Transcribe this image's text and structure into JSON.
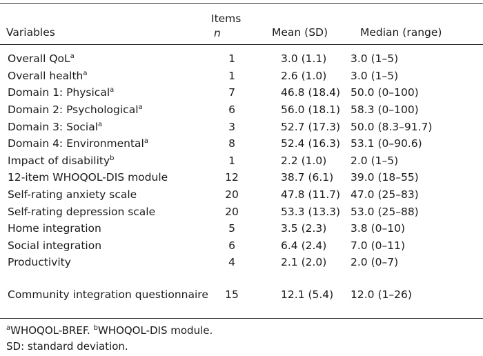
{
  "header": {
    "variables": "Variables",
    "items": "Items",
    "n": "n",
    "mean_sd": "Mean (SD)",
    "median_range": "Median (range)"
  },
  "rows": [
    {
      "label": "Overall QoL",
      "sup": "a",
      "items": "1",
      "mean": "3.0 (1.1)",
      "median": "3.0 (1–5)"
    },
    {
      "label": "Overall health",
      "sup": "a",
      "items": "1",
      "mean": "2.6 (1.0)",
      "median": "3.0 (1–5)"
    },
    {
      "label": "Domain 1: Physical",
      "sup": "a",
      "items": "7",
      "mean": "46.8 (18.4)",
      "median": "50.0 (0–100)"
    },
    {
      "label": "Domain 2: Psychological",
      "sup": "a",
      "items": "6",
      "mean": "56.0 (18.1)",
      "median": "58.3 (0–100)"
    },
    {
      "label": "Domain 3: Social",
      "sup": "a",
      "items": "3",
      "mean": "52.7 (17.3)",
      "median": "50.0 (8.3–91.7)"
    },
    {
      "label": "Domain 4: Environmental",
      "sup": "a",
      "items": "8",
      "mean": "52.4 (16.3)",
      "median": "53.1 (0–90.6)"
    },
    {
      "label": "Impact of disability",
      "sup": "b",
      "items": "1",
      "mean": "2.2 (1.0)",
      "median": "2.0 (1–5)"
    },
    {
      "label": "12-item WHOQOL-DIS module",
      "sup": "",
      "items": "12",
      "mean": "38.7 (6.1)",
      "median": "39.0 (18–55)"
    },
    {
      "label": "Self-rating anxiety scale",
      "sup": "",
      "items": "20",
      "mean": "47.8 (11.7)",
      "median": "47.0 (25–83)"
    },
    {
      "label": "Self-rating depression scale",
      "sup": "",
      "items": "20",
      "mean": "53.3 (13.3)",
      "median": "53.0 (25–88)"
    },
    {
      "label": "Home integration",
      "sup": "",
      "items": "5",
      "mean": "3.5 (2.3)",
      "median": "3.8 (0–10)"
    },
    {
      "label": "Social integration",
      "sup": "",
      "items": "6",
      "mean": "6.4 (2.4)",
      "median": "7.0 (0–11)"
    },
    {
      "label": "Productivity",
      "sup": "",
      "items": "4",
      "mean": "2.1 (2.0)",
      "median": "2.0 (0–7)"
    },
    {
      "label": "Community integration questionnaire",
      "sup": "",
      "items": "15",
      "mean": "12.1 (5.4)",
      "median": "12.0 (1–26)"
    }
  ],
  "footnotes": {
    "a_mark": "a",
    "a_text": "WHOQOL-BREF. ",
    "b_mark": "b",
    "b_text": "WHOQOL-DIS module.",
    "sd": "SD: standard deviation."
  }
}
